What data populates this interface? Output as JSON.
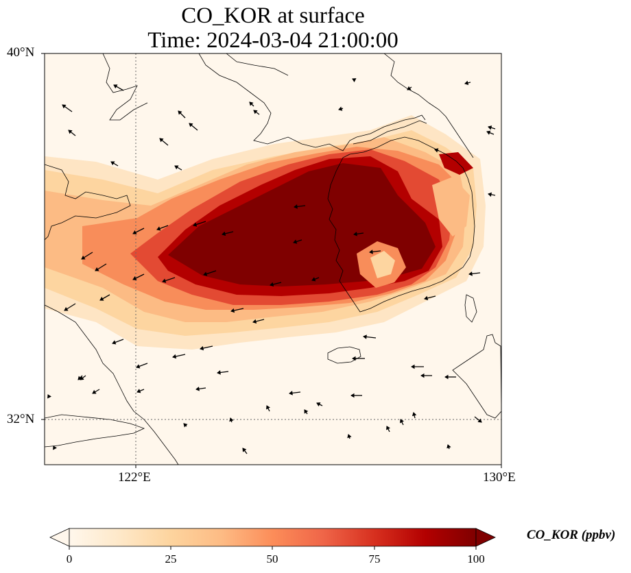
{
  "title": {
    "line1": "CO_KOR at surface",
    "line2": "Time: 2024-03-04 21:00:00"
  },
  "axes": {
    "lat_ticks": [
      "40°N",
      "32°N"
    ],
    "lon_ticks": [
      "122°E",
      "130°E"
    ]
  },
  "colorbar": {
    "label": "CO_KOR (ppbv)",
    "ticks": [
      "0",
      "25",
      "50",
      "75",
      "100"
    ],
    "cmap": "OrRd",
    "min": 0,
    "max": 100,
    "extend": "both"
  },
  "map": {
    "lon_range": [
      120,
      130
    ],
    "lat_range": [
      31,
      40
    ],
    "gridlines": {
      "lons": [
        122
      ],
      "lats": [
        32
      ]
    }
  }
}
